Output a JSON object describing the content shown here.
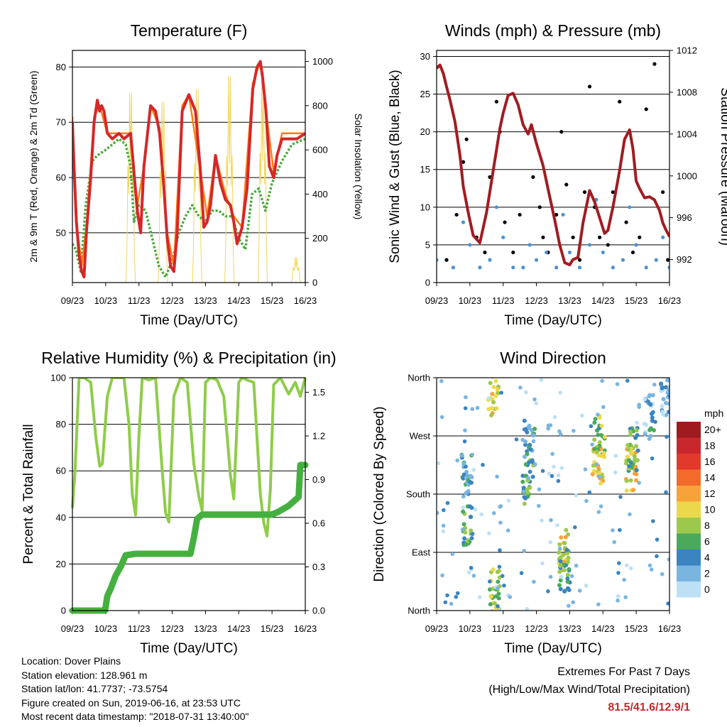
{
  "chart_data": [
    {
      "type": "line",
      "title": "Temperature (F)",
      "xlabel": "Time (Day/UTC)",
      "ylabel": "2m & 9m T (Red, Orange) & 2m Td (Green)",
      "y2label": "Solar Insolation (Yellow)",
      "x_ticks": [
        "09/23",
        "10/23",
        "11/23",
        "12/23",
        "13/23",
        "14/23",
        "15/23",
        "16/23"
      ],
      "y_ticks": [
        50,
        60,
        70,
        80
      ],
      "y2_ticks": [
        0,
        200,
        400,
        600,
        800,
        1000
      ],
      "ylim": [
        41,
        83
      ],
      "y2lim": [
        0,
        1050
      ],
      "grid": "horizontal",
      "series": [
        {
          "name": "2m T",
          "color": "#d62728",
          "width": 4,
          "x": [
            0,
            0.05,
            0.12,
            0.2,
            0.28,
            0.35,
            0.42,
            0.55,
            0.65,
            0.75,
            0.82,
            0.88,
            0.95,
            1.05,
            1.2,
            1.4,
            1.55,
            1.75,
            1.95,
            2.05,
            2.15,
            2.35,
            2.5,
            2.62,
            2.75,
            2.85,
            2.95,
            3.05,
            3.15,
            3.3,
            3.5,
            3.7,
            3.85,
            3.95,
            4.05,
            4.15,
            4.3,
            4.45,
            4.6,
            4.75,
            4.85,
            4.95,
            5.1,
            5.25,
            5.42,
            5.55,
            5.65,
            5.72,
            5.82,
            5.92,
            6.05,
            6.15,
            6.3,
            6.5,
            6.75,
            7
          ],
          "y": [
            70,
            62,
            52,
            46,
            43,
            42,
            50,
            60,
            70,
            74,
            72,
            73,
            72,
            68,
            67,
            68,
            67,
            68,
            54,
            50,
            62,
            73,
            72,
            68,
            58,
            49,
            44,
            43,
            50,
            72,
            75,
            72,
            61,
            51,
            52,
            55,
            64,
            59,
            56,
            55,
            52,
            48,
            51,
            58,
            76,
            80,
            81,
            78,
            72,
            62,
            60,
            64,
            67,
            67,
            67,
            68
          ]
        },
        {
          "name": "9m T",
          "color": "#ff7f0e",
          "width": 2,
          "x": [
            0,
            0.12,
            0.28,
            0.42,
            0.65,
            0.82,
            1.05,
            1.4,
            1.75,
            1.95,
            2.15,
            2.35,
            2.62,
            2.85,
            3.05,
            3.3,
            3.5,
            3.85,
            4.05,
            4.3,
            4.6,
            4.85,
            5.1,
            5.42,
            5.65,
            5.82,
            6.05,
            6.3,
            7
          ],
          "y": [
            71,
            52,
            44,
            51,
            71,
            73,
            68,
            68,
            68,
            55,
            62,
            73,
            69,
            50,
            44,
            73,
            75,
            61,
            53,
            64,
            57,
            53,
            51,
            77,
            81,
            72,
            61,
            68,
            68
          ]
        },
        {
          "name": "2m Td",
          "color": "#4aaa3c",
          "width": 3,
          "dashed": true,
          "x": [
            0,
            0.1,
            0.25,
            0.4,
            0.6,
            0.75,
            1.0,
            1.2,
            1.4,
            1.6,
            1.75,
            1.85,
            2.0,
            2.2,
            2.4,
            2.6,
            2.8,
            3.0,
            3.2,
            3.4,
            3.6,
            3.8,
            4.0,
            4.2,
            4.4,
            4.6,
            4.8,
            5.0,
            5.2,
            5.4,
            5.6,
            5.8,
            6.0,
            6.3,
            6.6,
            7
          ],
          "y": [
            48,
            47,
            43,
            55,
            63,
            64,
            65,
            66,
            67,
            66,
            62,
            52,
            55,
            54,
            49,
            44,
            42,
            45,
            50,
            53,
            55,
            53,
            52,
            54,
            54,
            53,
            53,
            49,
            47,
            57,
            58,
            54,
            59,
            63,
            66,
            67
          ]
        },
        {
          "name": "Solar Insolation",
          "color": "#f0d65a",
          "axis": "right",
          "width": 1,
          "peaks": [
            {
              "x": 1.75,
              "y": 900
            },
            {
              "x": 2.72,
              "y": 860
            },
            {
              "x": 3.75,
              "y": 920
            },
            {
              "x": 4.72,
              "y": 980
            },
            {
              "x": 5.72,
              "y": 1000
            },
            {
              "x": 6.72,
              "y": 120
            }
          ]
        }
      ]
    },
    {
      "type": "scatter",
      "title": "Winds (mph) & Pressure (mb)",
      "xlabel": "Time (Day/UTC)",
      "ylabel": "Sonic Wind & Gust (Blue, Black)",
      "y2label": "Station Pressure (Maroon)",
      "x_ticks": [
        "09/23",
        "10/23",
        "11/23",
        "12/23",
        "13/23",
        "14/23",
        "15/23",
        "16/23"
      ],
      "y_ticks": [
        0,
        5,
        10,
        15,
        20,
        25,
        30
      ],
      "y2_ticks": [
        992,
        996,
        1000,
        1004,
        1008,
        1012
      ],
      "ylim": [
        0,
        30.8
      ],
      "y2lim": [
        989.8,
        1012
      ],
      "grid": "horizontal",
      "series": [
        {
          "name": "Gust",
          "color": "#000000",
          "marker": "dot",
          "x": [
            0.3,
            0.6,
            0.8,
            0.9,
            1.2,
            1.45,
            1.6,
            1.8,
            1.9,
            2.05,
            2.3,
            2.5,
            2.9,
            3.1,
            3.2,
            3.35,
            3.6,
            3.75,
            3.9,
            4.1,
            4.3,
            4.45,
            4.6,
            4.75,
            4.9,
            5.15,
            5.3,
            5.5,
            5.7,
            5.9,
            6.1,
            6.3,
            6.55,
            6.8,
            6.95
          ],
          "y": [
            3,
            9,
            16,
            19,
            6,
            4,
            14,
            24,
            20,
            8,
            4,
            9,
            14,
            10,
            6,
            4,
            9,
            20,
            13,
            6,
            3,
            12,
            26,
            10,
            6,
            5,
            12,
            24,
            8,
            4,
            6,
            23,
            29,
            12,
            3
          ]
        },
        {
          "name": "Sonic Wind",
          "color": "#4f90d0",
          "marker": "dot",
          "x": [
            0,
            0.5,
            0.8,
            1.0,
            1.3,
            1.6,
            1.8,
            2.0,
            2.3,
            2.6,
            2.8,
            3.0,
            3.3,
            3.6,
            3.8,
            4.0,
            4.3,
            4.6,
            4.8,
            5.0,
            5.3,
            5.6,
            5.8,
            6.0,
            6.3,
            6.6,
            6.8,
            7
          ],
          "y": [
            3,
            2,
            8,
            5,
            2,
            3,
            10,
            6,
            2,
            2,
            5,
            3,
            4,
            2,
            9,
            4,
            2,
            5,
            11,
            4,
            2,
            3,
            10,
            5,
            2,
            3,
            6,
            2
          ]
        },
        {
          "name": "Station Pressure",
          "color": "#a01c22",
          "axis": "right",
          "width": 4,
          "x": [
            0,
            0.1,
            0.2,
            0.3,
            0.4,
            0.55,
            0.7,
            0.8,
            0.95,
            1.1,
            1.3,
            1.5,
            1.7,
            1.9,
            2.0,
            2.15,
            2.3,
            2.45,
            2.6,
            2.75,
            2.85,
            3.0,
            3.2,
            3.4,
            3.55,
            3.7,
            3.85,
            4.0,
            4.1,
            4.25,
            4.4,
            4.6,
            4.75,
            4.9,
            5.05,
            5.15,
            5.3,
            5.5,
            5.65,
            5.8,
            5.9,
            6.0,
            6.1,
            6.25,
            6.4,
            6.55,
            6.7,
            6.8,
            6.9,
            7
          ],
          "y": [
            1010.3,
            1010.6,
            1009.8,
            1008.5,
            1007.3,
            1005.2,
            1002,
            999,
            996.5,
            994.3,
            993.6,
            996.5,
            1000.5,
            1004.5,
            1006,
            1007.7,
            1007.9,
            1006.8,
            1004.9,
            1004,
            1004.9,
            1003.1,
            1001,
            998,
            995.8,
            993.4,
            991.7,
            991.5,
            992,
            992.2,
            995.5,
            998.6,
            997.5,
            996,
            994.5,
            994.8,
            997,
            1000.5,
            1003.5,
            1004.4,
            1002.6,
            999.5,
            998.8,
            997.9,
            998,
            997.7,
            996.7,
            995.5,
            994.8,
            994.2
          ]
        }
      ]
    },
    {
      "type": "line",
      "title": "Relative Humidity (%) & Precipitation (in)",
      "xlabel": "Time (Day/UTC)",
      "ylabel": "Percent & Total Rainfall",
      "x_ticks": [
        "09/23",
        "10/23",
        "11/23",
        "12/23",
        "13/23",
        "14/23",
        "15/23",
        "16/23"
      ],
      "y_ticks": [
        0,
        20,
        40,
        60,
        80,
        100
      ],
      "y2_ticks": [
        "0.0",
        "0.3",
        "0.6",
        "0.9",
        "1.2",
        "1.5"
      ],
      "ylim": [
        0,
        100
      ],
      "y2lim": [
        0,
        1.6
      ],
      "grid": "horizontal",
      "series": [
        {
          "name": "Relative Humidity",
          "color": "#8fcc4a",
          "width": 4,
          "x": [
            0,
            0.08,
            0.2,
            0.35,
            0.55,
            0.7,
            0.82,
            0.9,
            1.05,
            1.2,
            1.55,
            1.7,
            1.8,
            1.9,
            2.0,
            2.1,
            2.3,
            2.5,
            2.7,
            2.8,
            2.9,
            3.05,
            3.25,
            3.45,
            3.65,
            3.8,
            3.9,
            4.0,
            4.15,
            4.35,
            4.55,
            4.75,
            4.85,
            5.0,
            5.1,
            5.25,
            5.45,
            5.65,
            5.75,
            5.85,
            5.95,
            6.05,
            6.25,
            6.5,
            6.7,
            6.85,
            7
          ],
          "y": [
            44,
            60,
            100,
            100,
            98,
            75,
            62,
            63,
            92,
            100,
            100,
            80,
            50,
            41,
            75,
            100,
            99,
            100,
            60,
            42,
            38,
            92,
            100,
            98,
            63,
            49,
            43,
            98,
            100,
            99,
            92,
            58,
            48,
            98,
            100,
            99,
            98,
            50,
            38,
            32,
            52,
            97,
            100,
            93,
            98,
            92,
            100
          ]
        },
        {
          "name": "Total Rainfall",
          "color": "#45b03f",
          "width": 9,
          "axis": "right",
          "x": [
            0,
            0.98,
            1.05,
            1.15,
            1.3,
            1.45,
            1.6,
            1.9,
            2.5,
            3.0,
            3.55,
            3.65,
            3.75,
            3.9,
            4.5,
            5.5,
            6.0,
            6.2,
            6.5,
            6.8,
            6.85,
            7
          ],
          "y": [
            0,
            0,
            0.1,
            0.15,
            0.24,
            0.3,
            0.38,
            0.39,
            0.39,
            0.39,
            0.39,
            0.5,
            0.63,
            0.66,
            0.66,
            0.66,
            0.66,
            0.68,
            0.72,
            0.78,
            1.0,
            1.0
          ]
        }
      ]
    },
    {
      "type": "scatter",
      "title": "Wind Direction",
      "xlabel": "Time (Day/UTC)",
      "ylabel": "Direction (Colored By Speed)",
      "x_ticks": [
        "09/23",
        "10/23",
        "11/23",
        "12/23",
        "13/23",
        "14/23",
        "15/23",
        "16/23"
      ],
      "y_ticks": [
        "North",
        "East",
        "South",
        "West",
        "North"
      ],
      "ylim": [
        0,
        360
      ],
      "grid": "horizontal",
      "colorbar": {
        "title": "mph",
        "labels": [
          "20+",
          "18",
          "16",
          "14",
          "12",
          "10",
          "8",
          "6",
          "4",
          "2",
          "0"
        ],
        "colors": [
          "#9e1b20",
          "#c8282d",
          "#e13a2d",
          "#f26b2b",
          "#f8a33a",
          "#ecd94b",
          "#9cc94b",
          "#4aaa5c",
          "#3a84c0",
          "#7ab5e0",
          "#bde0f5"
        ]
      },
      "clusters": [
        {
          "x": 0.9,
          "dir": 210,
          "speed": 4
        },
        {
          "x": 0.95,
          "dir": 135,
          "speed": 6
        },
        {
          "x": 1.7,
          "dir": 335,
          "speed": 10
        },
        {
          "x": 1.75,
          "dir": 30,
          "speed": 8
        },
        {
          "x": 2.75,
          "dir": 200,
          "speed": 6
        },
        {
          "x": 2.8,
          "dir": 260,
          "speed": 4
        },
        {
          "x": 3.8,
          "dir": 90,
          "speed": 10
        },
        {
          "x": 3.85,
          "dir": 60,
          "speed": 6
        },
        {
          "x": 4.85,
          "dir": 230,
          "speed": 10
        },
        {
          "x": 4.9,
          "dir": 270,
          "speed": 8
        },
        {
          "x": 5.85,
          "dir": 220,
          "speed": 10
        },
        {
          "x": 5.9,
          "dir": 250,
          "speed": 6
        },
        {
          "x": 6.4,
          "dir": 300,
          "speed": 3
        },
        {
          "x": 6.9,
          "dir": 330,
          "speed": 2
        }
      ]
    }
  ],
  "footer": {
    "location": "Location: Dover Plains",
    "elevation": "Station elevation: 128.961 m",
    "latlon": "Station lat/lon: 41.7737; -73.5754",
    "created": "Figure created on Sun, 2019-06-16, at 23:53 UTC",
    "recent": "Most recent data timestamp: \"2018-07-31 13:40:00\""
  },
  "extremes": {
    "title": "Extremes For Past 7 Days",
    "subtitle": "(High/Low/Max Wind/Total Precipitation)",
    "values": "81.5/41.6/12.9/1",
    "color": "#c8282d"
  }
}
